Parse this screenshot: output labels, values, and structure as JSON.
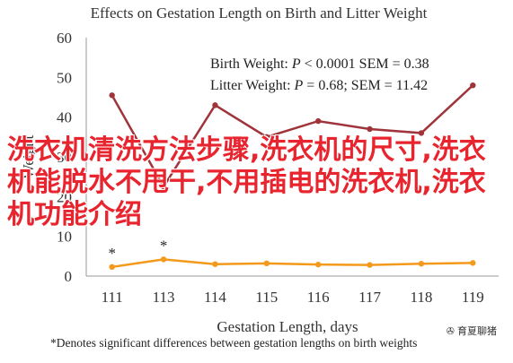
{
  "chart_data": {
    "type": "line",
    "title": "Effects on Gestation Length on Birth and Litter Weight",
    "xlabel": "Gestation Length, days",
    "ylabel": "Weight",
    "categories": [
      "111",
      "113",
      "114",
      "115",
      "116",
      "117",
      "118",
      "119"
    ],
    "ylim": [
      0,
      60
    ],
    "yticks": [
      0,
      10,
      20,
      30,
      40,
      50,
      60
    ],
    "grid": false,
    "legend_position": "top-right",
    "series": [
      {
        "name": "Birth Weight",
        "color": "#a0343b",
        "values": [
          45.5,
          22.5,
          43,
          35,
          39,
          37,
          36,
          48
        ]
      },
      {
        "name": "Litter Weight",
        "color": "#f39a1c",
        "values": [
          2.3,
          4.2,
          3.0,
          3.2,
          2.9,
          2.8,
          3.1,
          3.3
        ]
      }
    ],
    "annotations": [
      {
        "text": "*",
        "category": "111"
      },
      {
        "text": "*",
        "category": "113"
      }
    ],
    "legend_text": {
      "birth_prefix": "Birth Weight: ",
      "birth_p": "P",
      "birth_suffix": " < 0.0001 SEM = 0.38",
      "litter_prefix": "Litter Weight: ",
      "litter_p": "P",
      "litter_suffix": " = 0.68; SEM = 11.42"
    },
    "footnote": "*Denotes significant differences between gestation lengths on birth weights"
  },
  "overlay_text": "洗衣机清洗方法步骤,洗衣机的尺寸,洗衣机能脱水不甩干,不用插电的洗衣机,洗衣机功能介绍",
  "watermark": {
    "icon": "wechat-icon",
    "label": "育夏聊猪"
  }
}
